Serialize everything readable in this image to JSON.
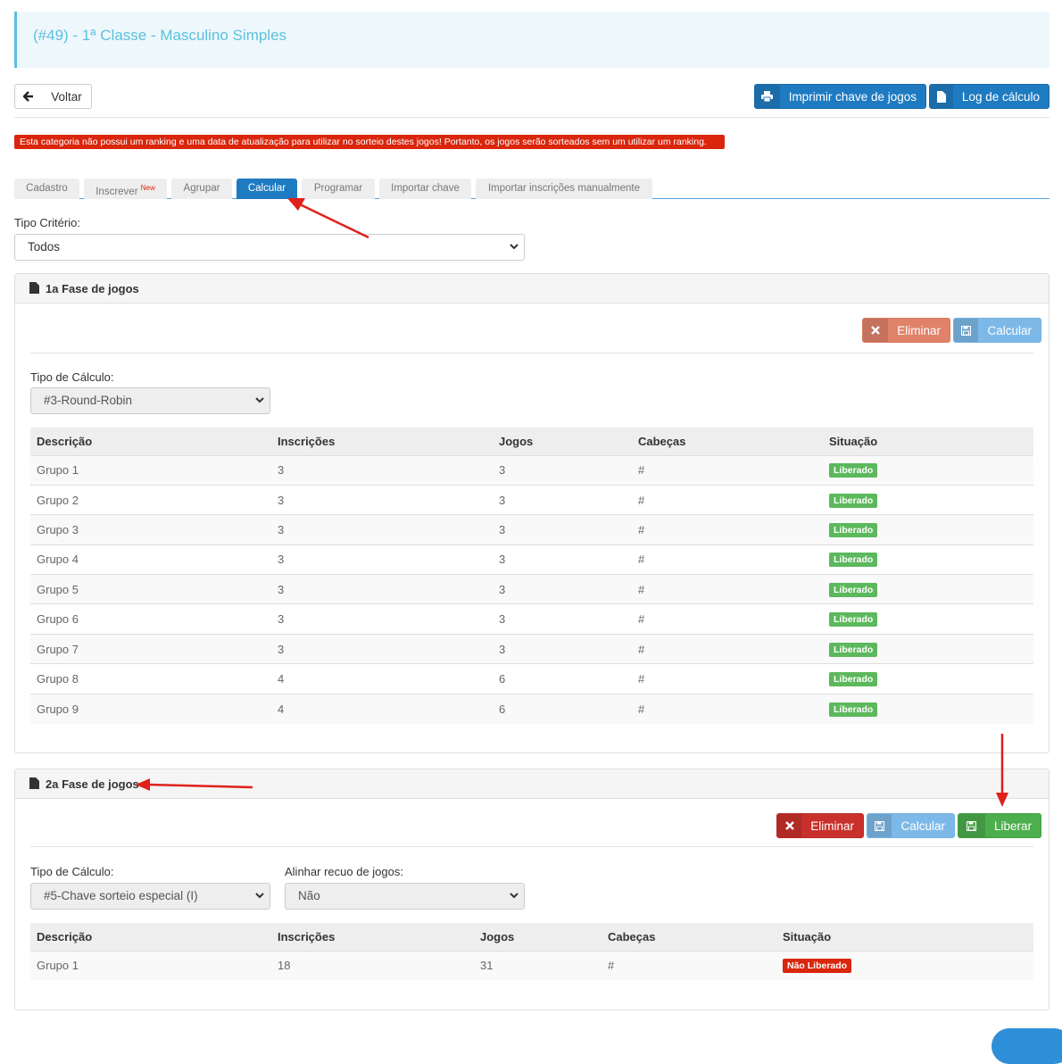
{
  "page": {
    "title": "(#49) - 1ª Classe - Masculino Simples"
  },
  "toolbar": {
    "back_label": "Voltar",
    "print_label": "Imprimir chave de jogos",
    "log_label": "Log de cálculo"
  },
  "alert": {
    "text": "Esta categoria não possui um ranking e uma data de atualização para utilizar no sorteio destes jogos! Portanto, os jogos serão sorteados sem um utilizar um ranking."
  },
  "tabs": [
    {
      "label": "Cadastro"
    },
    {
      "label": "Inscrever",
      "badge": "New"
    },
    {
      "label": "Agrupar"
    },
    {
      "label": "Calcular",
      "active": true
    },
    {
      "label": "Programar"
    },
    {
      "label": "Importar chave"
    },
    {
      "label": "Importar inscrições manualmente"
    }
  ],
  "criteria": {
    "label": "Tipo Critério:",
    "value": "Todos"
  },
  "phase1": {
    "title": "1a Fase de jogos",
    "eliminate_label": "Eliminar",
    "calc_label": "Calcular",
    "calc_type_label": "Tipo de Cálculo:",
    "calc_type_value": "#3-Round-Robin",
    "columns": [
      "Descrição",
      "Inscrições",
      "Jogos",
      "Cabeças",
      "Situação"
    ],
    "rows": [
      {
        "desc": "Grupo 1",
        "insc": "3",
        "jogos": "3",
        "cab": "#",
        "sit": "Liberado"
      },
      {
        "desc": "Grupo 2",
        "insc": "3",
        "jogos": "3",
        "cab": "#",
        "sit": "Liberado"
      },
      {
        "desc": "Grupo 3",
        "insc": "3",
        "jogos": "3",
        "cab": "#",
        "sit": "Liberado"
      },
      {
        "desc": "Grupo 4",
        "insc": "3",
        "jogos": "3",
        "cab": "#",
        "sit": "Liberado"
      },
      {
        "desc": "Grupo 5",
        "insc": "3",
        "jogos": "3",
        "cab": "#",
        "sit": "Liberado"
      },
      {
        "desc": "Grupo 6",
        "insc": "3",
        "jogos": "3",
        "cab": "#",
        "sit": "Liberado"
      },
      {
        "desc": "Grupo 7",
        "insc": "3",
        "jogos": "3",
        "cab": "#",
        "sit": "Liberado"
      },
      {
        "desc": "Grupo 8",
        "insc": "4",
        "jogos": "6",
        "cab": "#",
        "sit": "Liberado"
      },
      {
        "desc": "Grupo 9",
        "insc": "4",
        "jogos": "6",
        "cab": "#",
        "sit": "Liberado"
      }
    ]
  },
  "phase2": {
    "title": "2a Fase de jogos",
    "eliminate_label": "Eliminar",
    "calc_label": "Calcular",
    "release_label": "Liberar",
    "calc_type_label": "Tipo de Cálculo:",
    "calc_type_value": "#5-Chave sorteio especial (I)",
    "align_label": "Alinhar recuo de jogos:",
    "align_value": "Não",
    "columns": [
      "Descrição",
      "Inscrições",
      "Jogos",
      "Cabeças",
      "Situação"
    ],
    "rows": [
      {
        "desc": "Grupo 1",
        "insc": "18",
        "jogos": "31",
        "cab": "#",
        "sit": "Não Liberado"
      }
    ]
  },
  "colors": {
    "primary": "#1f7bc1",
    "danger": "#d9260c",
    "success": "#5cb85c",
    "info": "#5bc0de",
    "annotation_arrow": "#e0201a"
  },
  "icons": [
    "arrow-left-icon",
    "print-icon",
    "file-icon",
    "times-icon",
    "save-icon"
  ]
}
